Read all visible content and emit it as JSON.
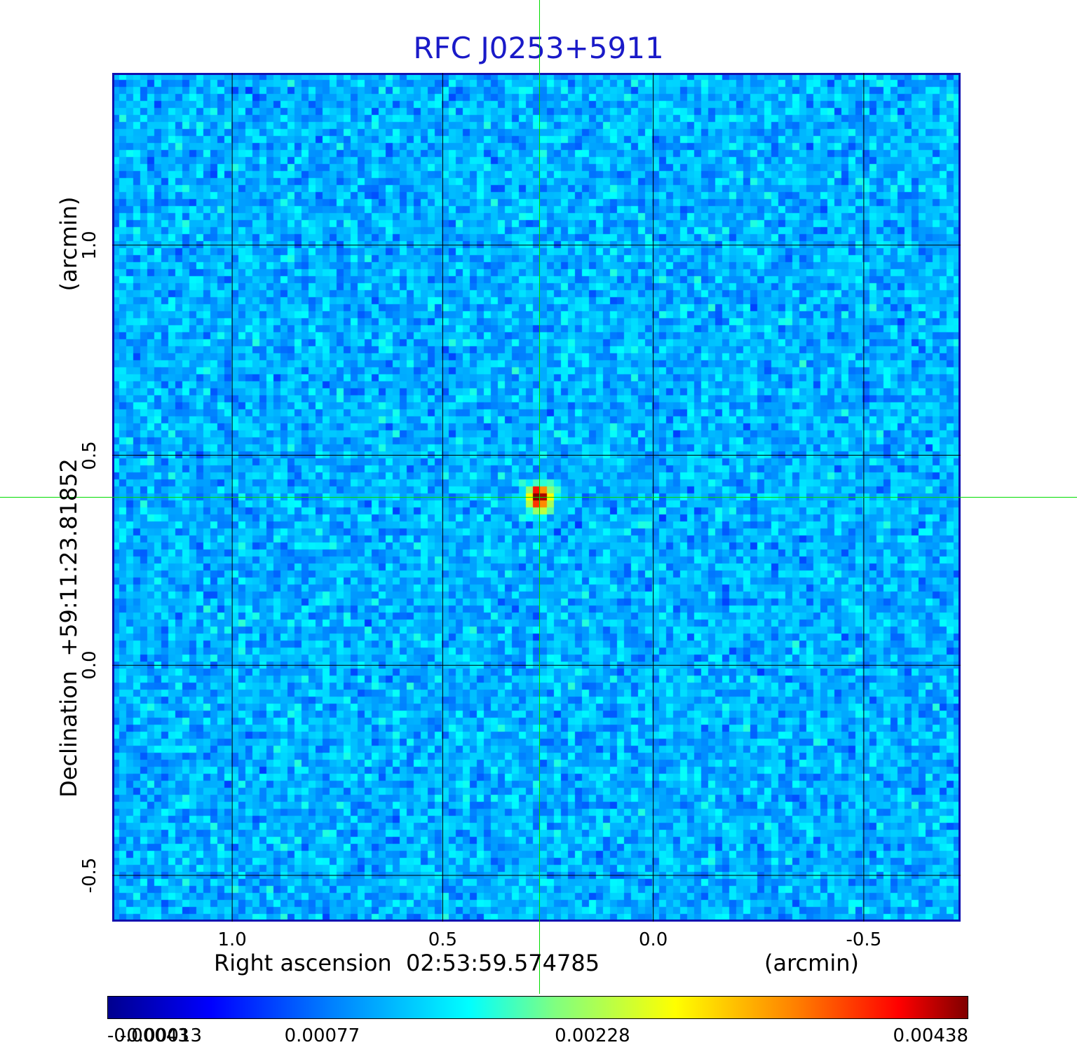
{
  "chart_data": {
    "type": "heatmap",
    "title": "RFC J0253+5911",
    "xlabel": "Right ascension  02:53:59.574785",
    "xunit": "(arcmin)",
    "ylabel": "Declination  +59:11:23.81852",
    "yunit": "(arcmin)",
    "x_ticks": [
      "1.0",
      "0.5",
      "0.0",
      "-0.5"
    ],
    "y_ticks": [
      "1.0",
      "0.5",
      "0.0",
      "-0.5"
    ],
    "x_tick_values": [
      1.0,
      0.5,
      0.0,
      -0.5
    ],
    "y_tick_values": [
      1.0,
      0.5,
      0.0,
      -0.5
    ],
    "xlim": [
      1.285,
      -0.73
    ],
    "ylim": [
      -0.61,
      1.41
    ],
    "grid": true,
    "source_peak": {
      "ra_offset_arcmin": 0.27,
      "dec_offset_arcmin": 0.4,
      "value": 0.00438
    },
    "crosshair": {
      "ra_offset_arcmin": 0.27,
      "dec_offset_arcmin": 0.4
    },
    "colorbar": {
      "colormap": "jet",
      "range": [
        -0.00043,
        0.00438
      ],
      "tick_labels": [
        "-0.00043",
        "-0.00013",
        "0.00077",
        "0.00228",
        "0.00438"
      ],
      "tick_values": [
        -0.00043,
        -0.00013,
        0.00077,
        0.00228,
        0.00438
      ]
    },
    "colors": {
      "title": "#1a1ac8",
      "frame": "#1010b0",
      "crosshair": "#00dd00",
      "grid": "#000000"
    }
  }
}
